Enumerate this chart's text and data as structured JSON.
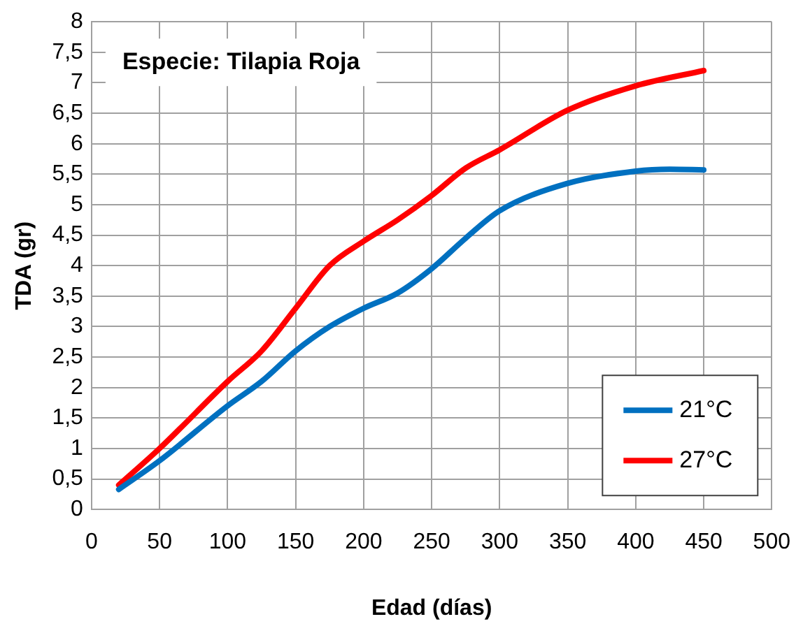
{
  "chart_data": {
    "type": "line",
    "title": "Especie: Tilapia Roja",
    "xlabel": "Edad (días)",
    "ylabel": "TDA (gr)",
    "series": [
      {
        "name": "21°C",
        "color": "#0070c0",
        "x": [
          20,
          50,
          100,
          125,
          150,
          175,
          200,
          225,
          250,
          275,
          300,
          350,
          400,
          425,
          450
        ],
        "values": [
          0.33,
          0.8,
          1.7,
          2.1,
          2.6,
          3.0,
          3.3,
          3.55,
          3.95,
          4.45,
          4.9,
          5.35,
          5.55,
          5.58,
          5.57
        ]
      },
      {
        "name": "27°C",
        "color": "#ff0000",
        "x": [
          20,
          50,
          100,
          125,
          150,
          175,
          200,
          225,
          250,
          275,
          300,
          350,
          400,
          450
        ],
        "values": [
          0.4,
          1.0,
          2.1,
          2.6,
          3.3,
          4.0,
          4.4,
          4.75,
          5.15,
          5.6,
          5.9,
          6.55,
          6.95,
          7.2
        ]
      }
    ],
    "xlim": [
      0,
      500
    ],
    "xticks": [
      0,
      50,
      100,
      150,
      200,
      250,
      300,
      350,
      400,
      450,
      500
    ],
    "ylim": [
      0,
      8
    ],
    "yticks": [
      0,
      {
        "value": 0.5,
        "label": "0,5"
      },
      1,
      {
        "value": 1.5,
        "label": "1,5"
      },
      2,
      {
        "value": 2.5,
        "label": "2,5"
      },
      3,
      {
        "value": 3.5,
        "label": "3,5"
      },
      4,
      {
        "value": 4.5,
        "label": "4,5"
      },
      5,
      {
        "value": 5.5,
        "label": "5,5"
      },
      6,
      {
        "value": 6.5,
        "label": "6,5"
      },
      7,
      {
        "value": 7.5,
        "label": "7,5"
      },
      8
    ],
    "grid": true,
    "legend": "bottom right",
    "marker": "none",
    "line_style": "solid"
  }
}
